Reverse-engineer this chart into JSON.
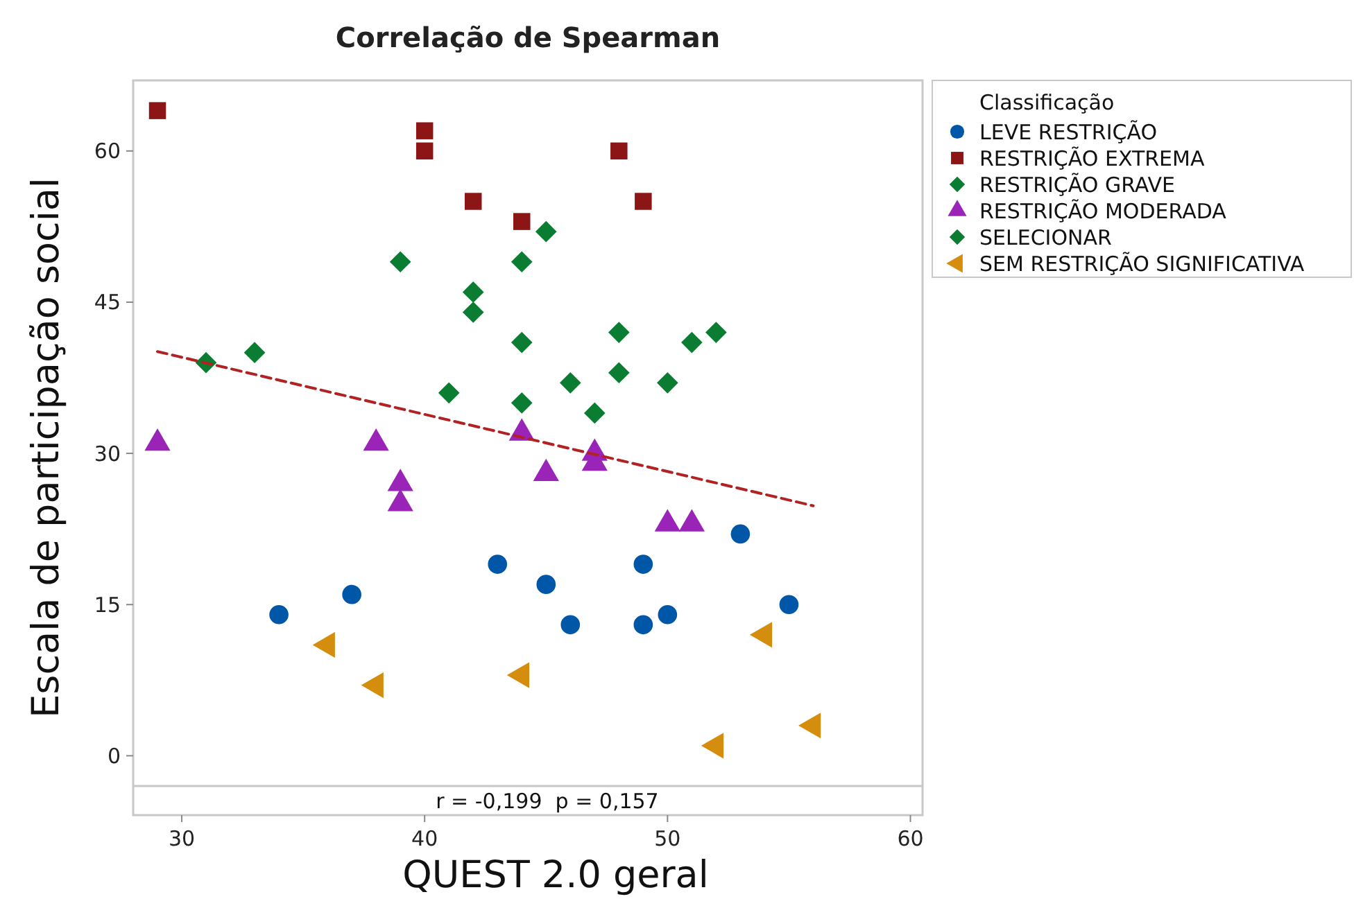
{
  "chart_data": {
    "type": "scatter",
    "title": "Correlação de Spearman",
    "xlabel": "QUEST 2.0 geral",
    "ylabel": "Escala de participação social",
    "legend_title": "Classificação",
    "legend": "right",
    "grid": false,
    "xlim": [
      28,
      60.5
    ],
    "xticks": [
      30,
      40,
      50,
      60
    ],
    "ylim": [
      -3,
      67
    ],
    "yticks": [
      0,
      15,
      30,
      45,
      60
    ],
    "annotations": [
      "r = -0,199  p = 0,157"
    ],
    "series": [
      {
        "name": "LEVE RESTRIÇÃO",
        "color": "#0057a8",
        "marker": "circle",
        "x": [
          34,
          37,
          43,
          45,
          46,
          49,
          49,
          50,
          53,
          55
        ],
        "values": [
          14,
          16,
          19,
          17,
          13,
          19,
          13,
          14,
          22,
          15
        ]
      },
      {
        "name": "RESTRIÇÃO EXTREMA",
        "color": "#8c1515",
        "marker": "square",
        "x": [
          29,
          40,
          40,
          42,
          44,
          48,
          49
        ],
        "values": [
          64,
          62,
          60,
          55,
          53,
          60,
          55
        ]
      },
      {
        "name": "RESTRIÇÃO GRAVE",
        "color": "#0a7d32",
        "marker": "diamond",
        "x": [
          31,
          33,
          39,
          42,
          42,
          41,
          44,
          44,
          44,
          45,
          46,
          47,
          48,
          48,
          50,
          51,
          52
        ],
        "values": [
          39,
          40,
          49,
          46,
          44,
          36,
          49,
          41,
          35,
          52,
          37,
          34,
          42,
          38,
          37,
          41,
          42
        ]
      },
      {
        "name": "RESTRIÇÃO MODERADA",
        "color": "#9a24b8",
        "marker": "triangle",
        "x": [
          29,
          38,
          39,
          39,
          44,
          45,
          47,
          47,
          50,
          51
        ],
        "values": [
          31,
          31,
          27,
          25,
          32,
          28,
          30,
          29,
          23,
          23
        ]
      },
      {
        "name": "SELECIONAR",
        "color": "#0a7d32",
        "marker": "diamond"
      },
      {
        "name": "SEM RESTRIÇÃO SIGNIFICATIVA",
        "color": "#d48d0c",
        "marker": "triangle-left",
        "x": [
          36,
          38,
          44,
          52,
          54,
          56
        ],
        "values": [
          11,
          7,
          8,
          1,
          12,
          3
        ]
      },
      {
        "type": "line",
        "color": "#b22222",
        "line_style": "dashed",
        "marker": "none",
        "x": [
          29,
          56
        ],
        "values": [
          40.1,
          24.8
        ]
      }
    ]
  }
}
